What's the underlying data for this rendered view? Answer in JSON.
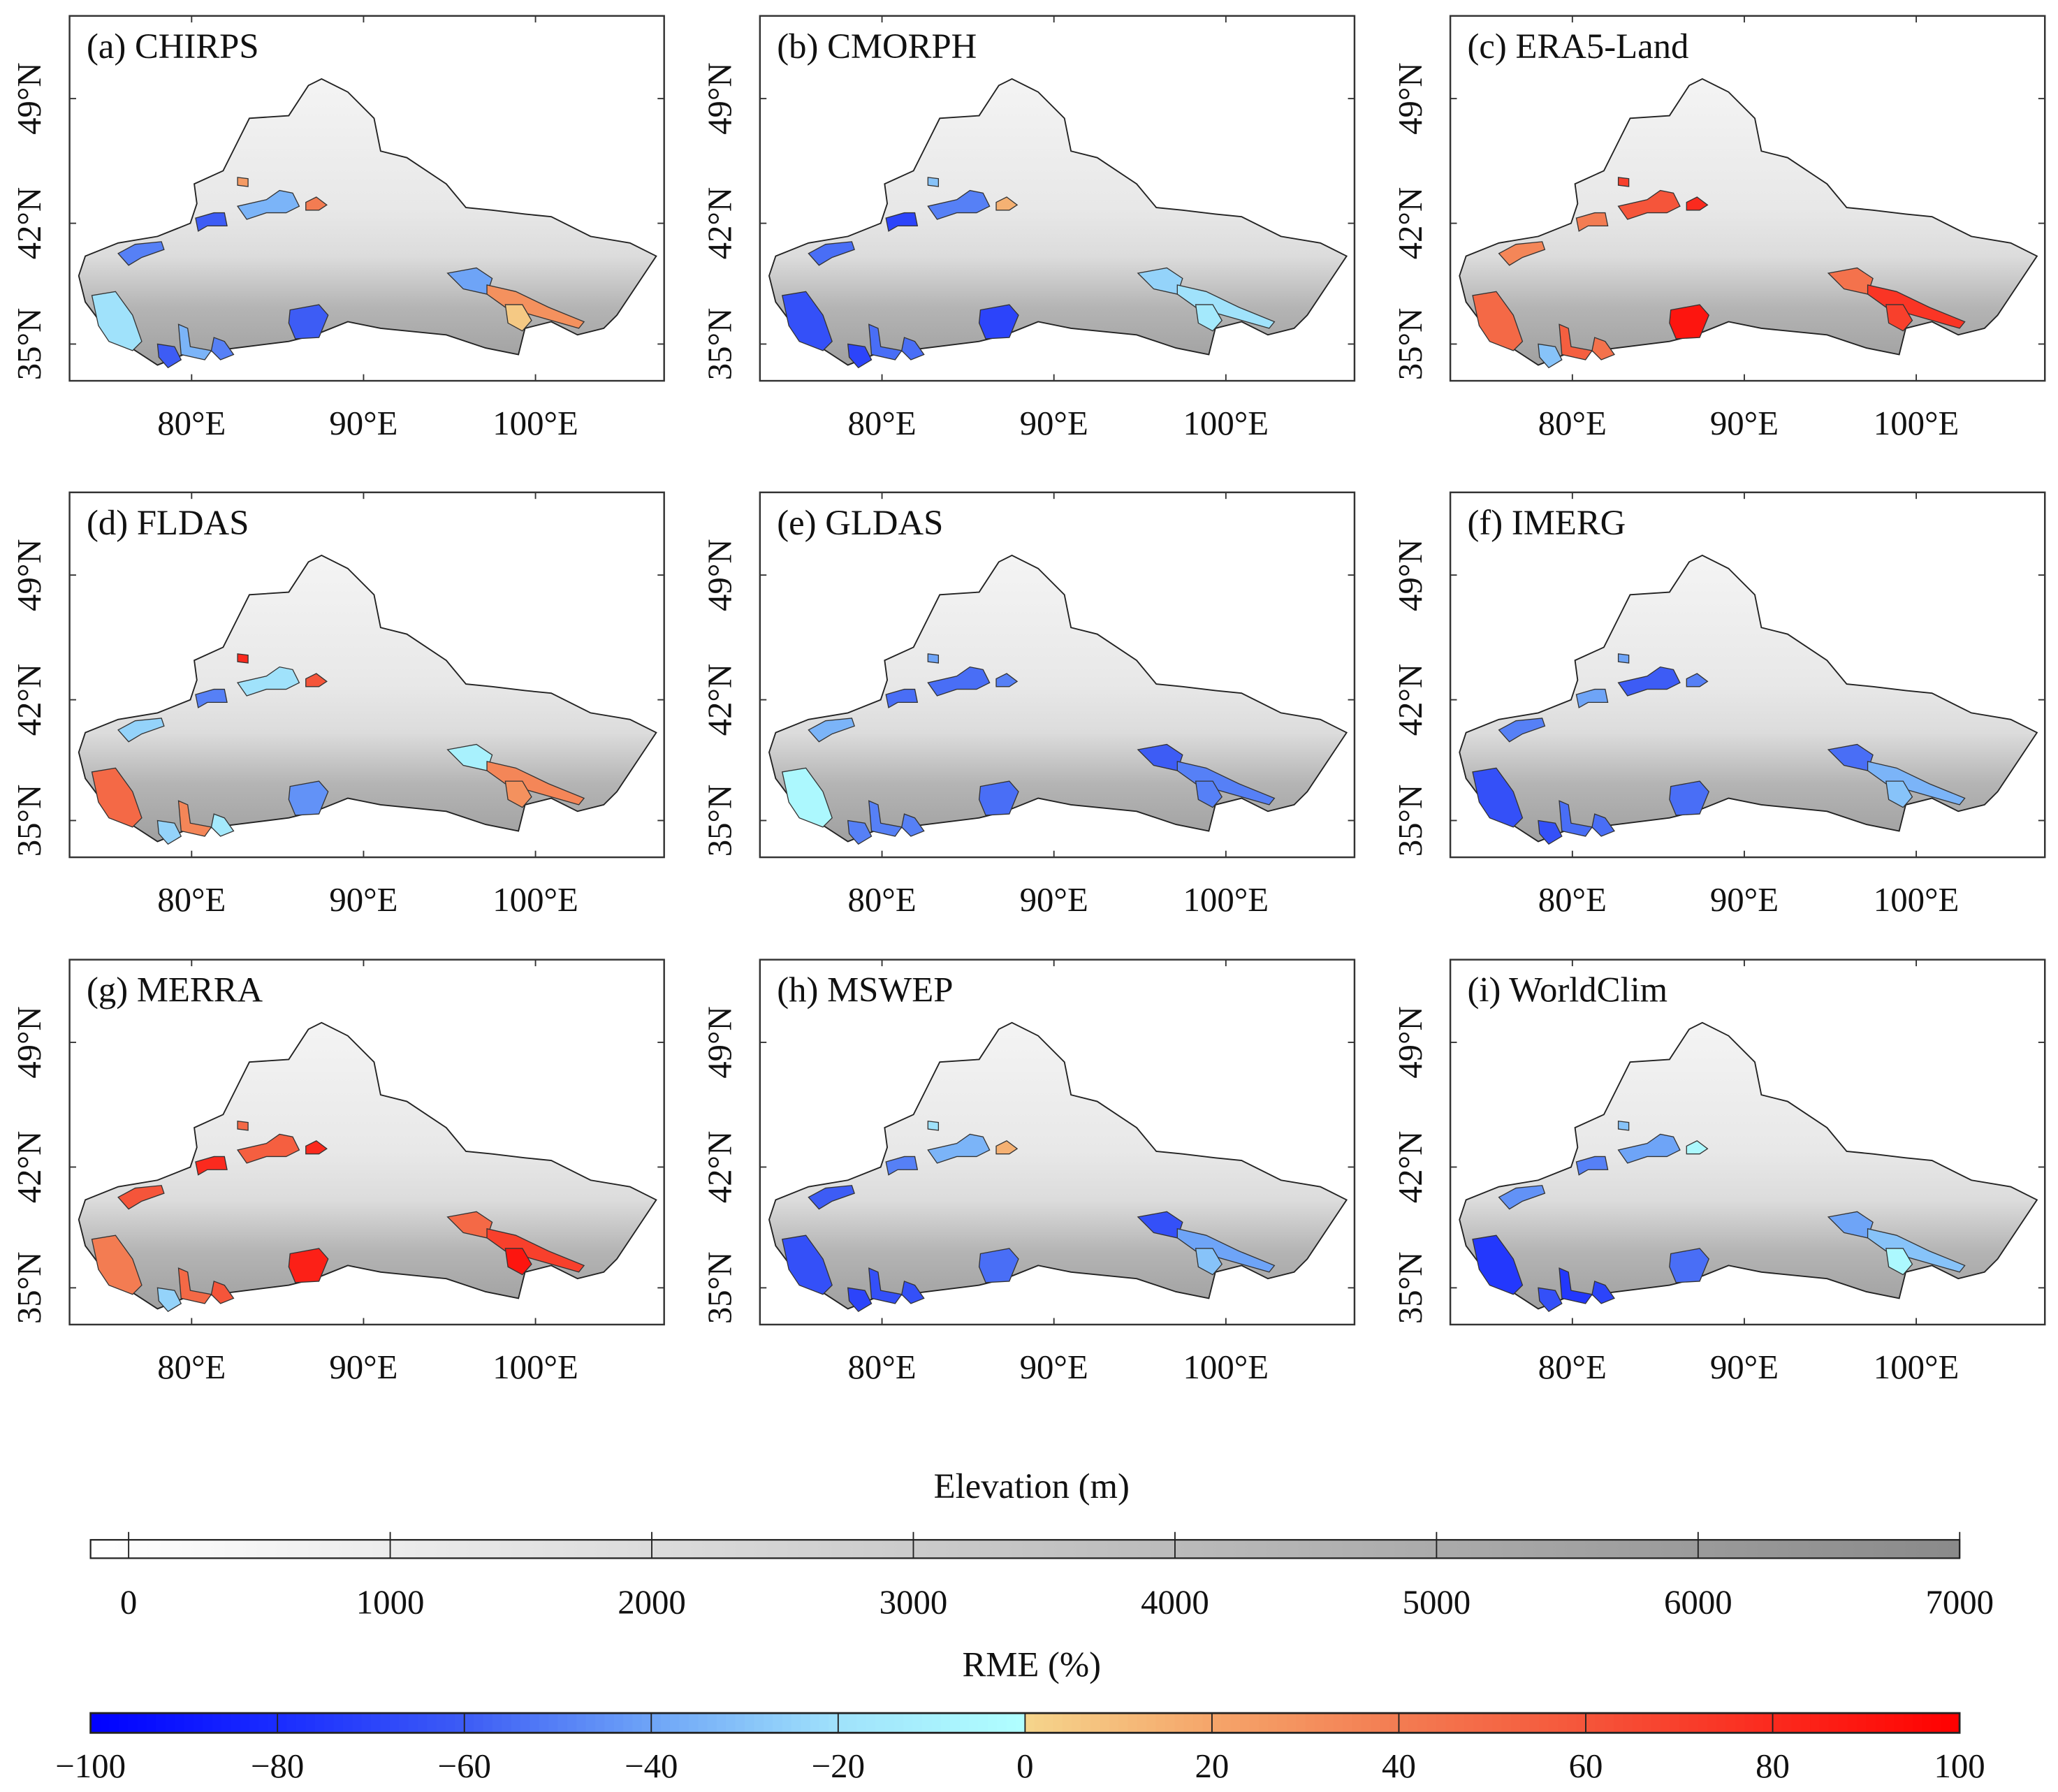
{
  "figure": {
    "lat_ticks": [
      "49°N",
      "42°N",
      "35°N"
    ],
    "lon_ticks": [
      "80°E",
      "90°E",
      "100°E"
    ],
    "basin_order": [
      "west-north",
      "southwest-large",
      "south-1",
      "south-2",
      "south-3",
      "central-south",
      "tianshan-west",
      "tianshan-mid",
      "tianshan-small",
      "tianshan-east",
      "east-1",
      "east-2",
      "east-3"
    ],
    "panels": [
      {
        "label": "(a) CHIRPS",
        "rme": [
          -50,
          -20,
          -60,
          -35,
          -50,
          -60,
          -60,
          -35,
          25,
          40,
          -40,
          30,
          5
        ]
      },
      {
        "label": "(b) CMORPH",
        "rme": [
          -55,
          -65,
          -70,
          -55,
          -55,
          -70,
          -70,
          -50,
          -30,
          15,
          -25,
          -20,
          -15
        ]
      },
      {
        "label": "(c) ERA5-Land",
        "rme": [
          35,
          50,
          -30,
          55,
          45,
          90,
          40,
          60,
          70,
          80,
          45,
          75,
          70
        ]
      },
      {
        "label": "(d) FLDAS",
        "rme": [
          -25,
          50,
          -25,
          35,
          -15,
          -45,
          -50,
          -20,
          80,
          60,
          -10,
          35,
          30
        ]
      },
      {
        "label": "(e) GLDAS",
        "rme": [
          -35,
          -5,
          -50,
          -50,
          -50,
          -55,
          -55,
          -55,
          -40,
          -50,
          -60,
          -50,
          -50
        ]
      },
      {
        "label": "(f) IMERG",
        "rme": [
          -50,
          -65,
          -65,
          -55,
          -55,
          -55,
          -40,
          -60,
          -40,
          -50,
          -55,
          -35,
          -30
        ]
      },
      {
        "label": "(g) MERRA",
        "rme": [
          60,
          40,
          -25,
          50,
          60,
          85,
          80,
          55,
          50,
          80,
          50,
          70,
          90
        ]
      },
      {
        "label": "(h) MSWEP",
        "rme": [
          -60,
          -65,
          -70,
          -65,
          -65,
          -55,
          -50,
          -35,
          -20,
          15,
          -65,
          -40,
          -30
        ]
      },
      {
        "label": "(i) WorldClim",
        "rme": [
          -45,
          -75,
          -65,
          -75,
          -70,
          -55,
          -50,
          -40,
          -30,
          -5,
          -40,
          -30,
          -5
        ]
      }
    ]
  },
  "elevation_bar": {
    "title": "Elevation (m)",
    "ticks": [
      "0",
      "1000",
      "2000",
      "3000",
      "4000",
      "5000",
      "6000",
      "7000"
    ],
    "colors": [
      "#ffffff",
      "#888888"
    ]
  },
  "rme_bar": {
    "title": "RME (%)",
    "ticks": [
      "−100",
      "−80",
      "−60",
      "−40",
      "−20",
      "0",
      "20",
      "40",
      "60",
      "80",
      "100"
    ],
    "colors_neg": [
      "#0000ff",
      "#1a2cff",
      "#3d5cf5",
      "#6ea4f7",
      "#a0e2fb",
      "#b0ffff"
    ],
    "colors_pos": [
      "#f5d58c",
      "#f5a56a",
      "#f37c52",
      "#f5553a",
      "#fb2a1e",
      "#ff0000"
    ]
  }
}
